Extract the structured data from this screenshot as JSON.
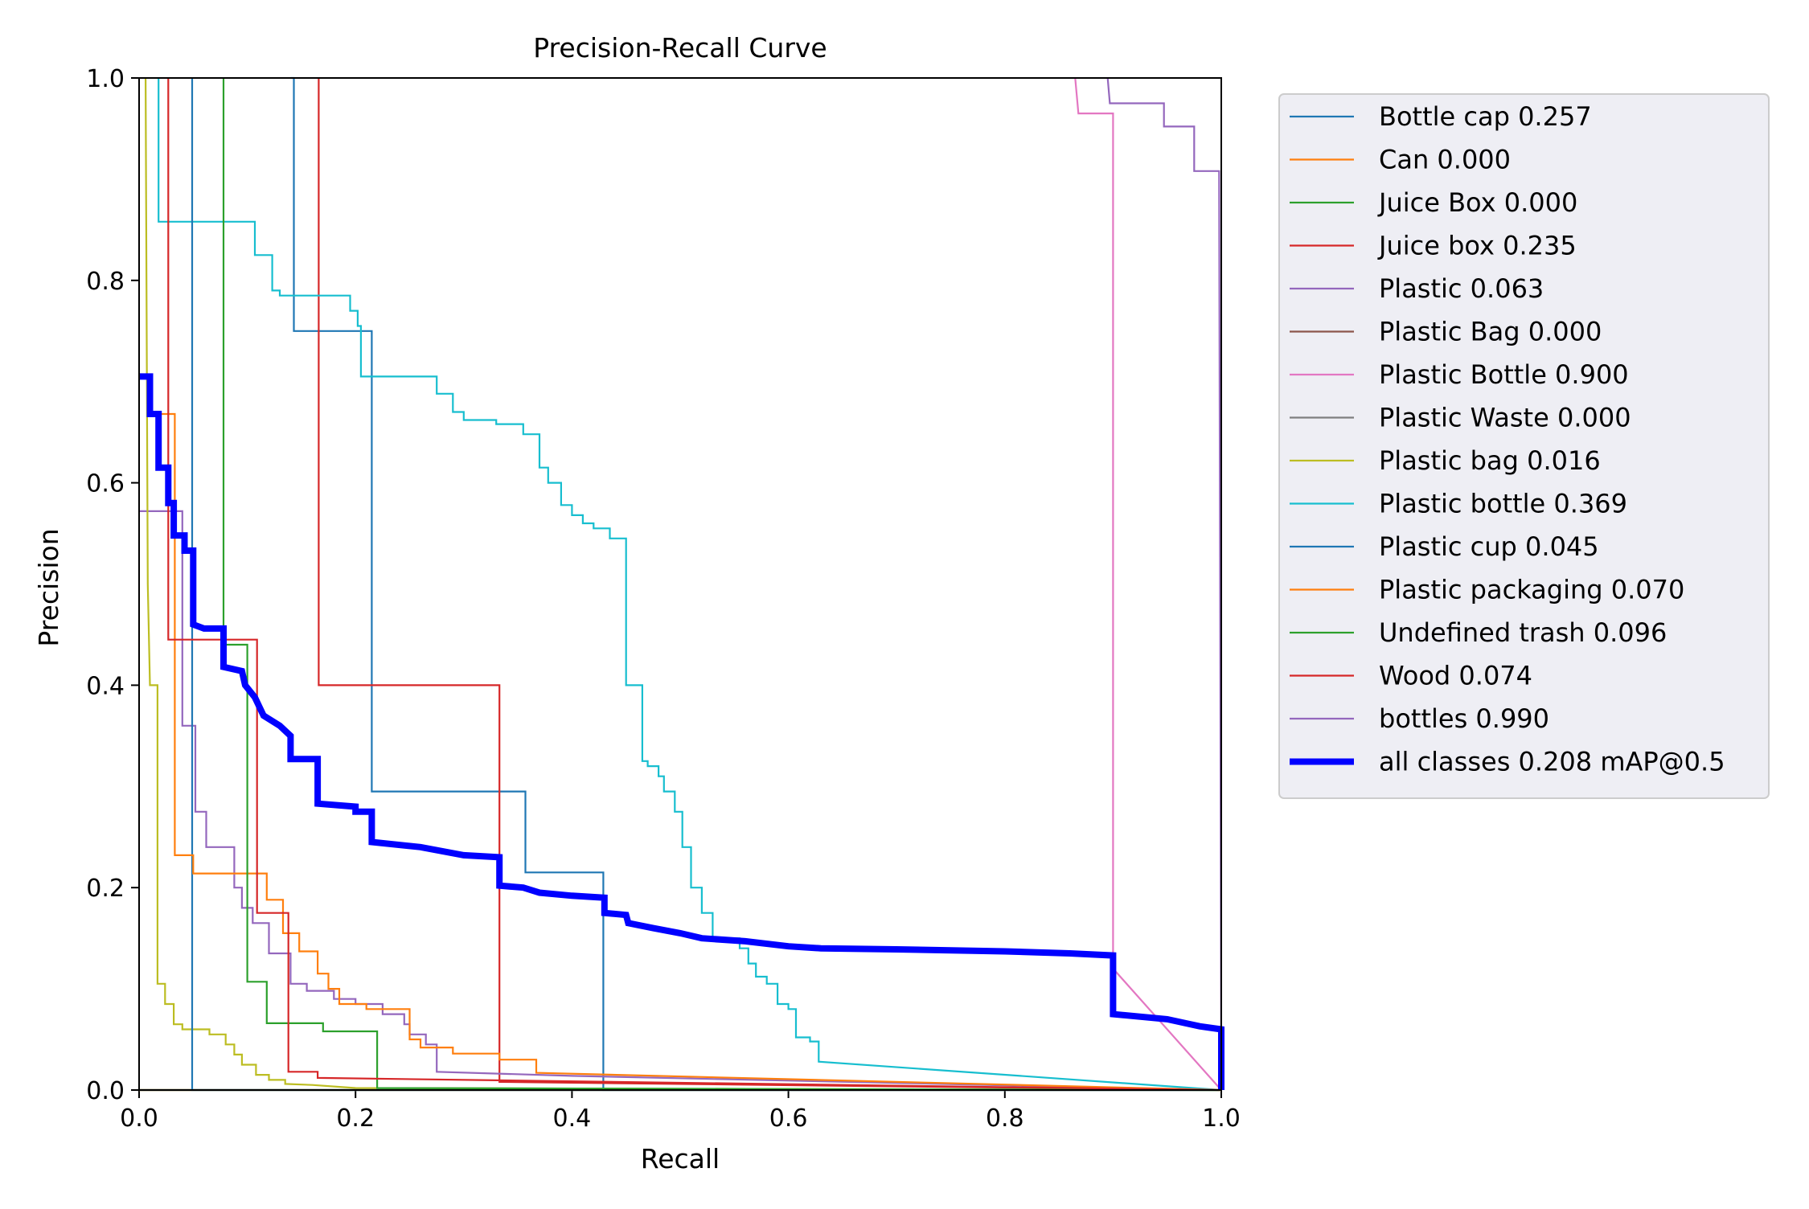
{
  "chart_data": {
    "type": "line",
    "title": "Precision-Recall Curve",
    "xlabel": "Recall",
    "ylabel": "Precision",
    "xlim": [
      0,
      1
    ],
    "ylim": [
      0,
      1
    ],
    "xticks": [
      "0.0",
      "0.2",
      "0.4",
      "0.6",
      "0.8",
      "1.0"
    ],
    "yticks": [
      "0.0",
      "0.2",
      "0.4",
      "0.6",
      "0.8",
      "1.0"
    ],
    "grid": false,
    "legend_position": "outside-top-right",
    "series": [
      {
        "name": "Bottle cap 0.257",
        "color": "#1f77b4",
        "width": "thin",
        "points": [
          [
            0.14,
            1.0
          ],
          [
            0.143,
            1.0
          ],
          [
            0.143,
            0.75
          ],
          [
            0.215,
            0.75
          ],
          [
            0.215,
            0.295
          ],
          [
            0.357,
            0.295
          ],
          [
            0.357,
            0.215
          ],
          [
            0.429,
            0.215
          ],
          [
            0.429,
            0.0
          ],
          [
            1.0,
            0.0
          ]
        ]
      },
      {
        "name": "Can 0.000",
        "color": "#ff7f0e",
        "width": "thin",
        "points": [
          [
            0.0,
            0.0
          ],
          [
            1.0,
            0.0
          ]
        ]
      },
      {
        "name": "Juice Box 0.000",
        "color": "#2ca02c",
        "width": "thin",
        "points": [
          [
            0.0,
            0.0
          ],
          [
            1.0,
            0.0
          ]
        ]
      },
      {
        "name": "Juice box 0.235",
        "color": "#d62728",
        "width": "thin",
        "points": [
          [
            0.166,
            1.0
          ],
          [
            0.166,
            0.4
          ],
          [
            0.333,
            0.4
          ],
          [
            0.333,
            0.008
          ],
          [
            1.0,
            0.0
          ]
        ]
      },
      {
        "name": "Plastic 0.063",
        "color": "#9467bd",
        "width": "thin",
        "points": [
          [
            0.0,
            0.572
          ],
          [
            0.04,
            0.572
          ],
          [
            0.04,
            0.36
          ],
          [
            0.052,
            0.36
          ],
          [
            0.052,
            0.275
          ],
          [
            0.062,
            0.275
          ],
          [
            0.062,
            0.24
          ],
          [
            0.088,
            0.24
          ],
          [
            0.088,
            0.2
          ],
          [
            0.095,
            0.2
          ],
          [
            0.095,
            0.18
          ],
          [
            0.105,
            0.18
          ],
          [
            0.105,
            0.165
          ],
          [
            0.12,
            0.165
          ],
          [
            0.12,
            0.135
          ],
          [
            0.14,
            0.135
          ],
          [
            0.14,
            0.105
          ],
          [
            0.155,
            0.105
          ],
          [
            0.155,
            0.098
          ],
          [
            0.18,
            0.098
          ],
          [
            0.18,
            0.09
          ],
          [
            0.2,
            0.09
          ],
          [
            0.2,
            0.085
          ],
          [
            0.225,
            0.085
          ],
          [
            0.225,
            0.075
          ],
          [
            0.245,
            0.075
          ],
          [
            0.245,
            0.065
          ],
          [
            0.25,
            0.065
          ],
          [
            0.25,
            0.055
          ],
          [
            0.265,
            0.055
          ],
          [
            0.265,
            0.045
          ],
          [
            0.275,
            0.045
          ],
          [
            0.275,
            0.018
          ],
          [
            0.4,
            0.014
          ],
          [
            1.0,
            0.0
          ]
        ]
      },
      {
        "name": "Plastic Bag 0.000",
        "color": "#8c564b",
        "width": "thin",
        "points": [
          [
            0.0,
            0.0
          ],
          [
            1.0,
            0.0
          ]
        ]
      },
      {
        "name": "Plastic Bottle 0.900",
        "color": "#e377c2",
        "width": "thin",
        "points": [
          [
            0.865,
            1.0
          ],
          [
            0.868,
            0.965
          ],
          [
            0.9,
            0.965
          ],
          [
            0.9,
            0.12
          ],
          [
            1.0,
            0.0
          ]
        ]
      },
      {
        "name": "Plastic Waste 0.000",
        "color": "#7f7f7f",
        "width": "thin",
        "points": [
          [
            0.0,
            0.0
          ],
          [
            1.0,
            0.0
          ]
        ]
      },
      {
        "name": "Plastic bag 0.016",
        "color": "#bcbd22",
        "width": "thin",
        "points": [
          [
            0.006,
            1.0
          ],
          [
            0.008,
            0.5
          ],
          [
            0.01,
            0.4
          ],
          [
            0.017,
            0.4
          ],
          [
            0.017,
            0.105
          ],
          [
            0.024,
            0.105
          ],
          [
            0.024,
            0.085
          ],
          [
            0.032,
            0.085
          ],
          [
            0.032,
            0.065
          ],
          [
            0.04,
            0.065
          ],
          [
            0.04,
            0.06
          ],
          [
            0.065,
            0.06
          ],
          [
            0.065,
            0.055
          ],
          [
            0.08,
            0.055
          ],
          [
            0.08,
            0.045
          ],
          [
            0.088,
            0.045
          ],
          [
            0.088,
            0.035
          ],
          [
            0.095,
            0.035
          ],
          [
            0.095,
            0.025
          ],
          [
            0.108,
            0.025
          ],
          [
            0.108,
            0.015
          ],
          [
            0.12,
            0.015
          ],
          [
            0.12,
            0.01
          ],
          [
            0.135,
            0.01
          ],
          [
            0.135,
            0.006
          ],
          [
            0.16,
            0.005
          ],
          [
            0.2,
            0.002
          ],
          [
            1.0,
            0.0
          ]
        ]
      },
      {
        "name": "Plastic bottle 0.369",
        "color": "#17becf",
        "width": "thin",
        "points": [
          [
            0.018,
            1.0
          ],
          [
            0.018,
            0.858
          ],
          [
            0.107,
            0.858
          ],
          [
            0.107,
            0.825
          ],
          [
            0.123,
            0.825
          ],
          [
            0.123,
            0.79
          ],
          [
            0.13,
            0.79
          ],
          [
            0.13,
            0.785
          ],
          [
            0.195,
            0.785
          ],
          [
            0.195,
            0.77
          ],
          [
            0.202,
            0.77
          ],
          [
            0.202,
            0.755
          ],
          [
            0.205,
            0.755
          ],
          [
            0.205,
            0.705
          ],
          [
            0.275,
            0.705
          ],
          [
            0.275,
            0.688
          ],
          [
            0.29,
            0.688
          ],
          [
            0.29,
            0.67
          ],
          [
            0.3,
            0.67
          ],
          [
            0.3,
            0.662
          ],
          [
            0.33,
            0.662
          ],
          [
            0.33,
            0.658
          ],
          [
            0.355,
            0.658
          ],
          [
            0.355,
            0.648
          ],
          [
            0.37,
            0.648
          ],
          [
            0.37,
            0.615
          ],
          [
            0.378,
            0.615
          ],
          [
            0.378,
            0.6
          ],
          [
            0.39,
            0.6
          ],
          [
            0.39,
            0.578
          ],
          [
            0.4,
            0.578
          ],
          [
            0.4,
            0.568
          ],
          [
            0.41,
            0.568
          ],
          [
            0.41,
            0.56
          ],
          [
            0.42,
            0.56
          ],
          [
            0.42,
            0.555
          ],
          [
            0.435,
            0.555
          ],
          [
            0.435,
            0.545
          ],
          [
            0.45,
            0.545
          ],
          [
            0.45,
            0.4
          ],
          [
            0.465,
            0.4
          ],
          [
            0.465,
            0.325
          ],
          [
            0.47,
            0.325
          ],
          [
            0.47,
            0.32
          ],
          [
            0.48,
            0.32
          ],
          [
            0.48,
            0.31
          ],
          [
            0.485,
            0.31
          ],
          [
            0.485,
            0.295
          ],
          [
            0.495,
            0.295
          ],
          [
            0.495,
            0.275
          ],
          [
            0.502,
            0.275
          ],
          [
            0.502,
            0.24
          ],
          [
            0.51,
            0.24
          ],
          [
            0.51,
            0.2
          ],
          [
            0.52,
            0.2
          ],
          [
            0.52,
            0.175
          ],
          [
            0.53,
            0.175
          ],
          [
            0.53,
            0.15
          ],
          [
            0.555,
            0.15
          ],
          [
            0.555,
            0.14
          ],
          [
            0.563,
            0.14
          ],
          [
            0.563,
            0.125
          ],
          [
            0.57,
            0.125
          ],
          [
            0.57,
            0.112
          ],
          [
            0.58,
            0.112
          ],
          [
            0.58,
            0.105
          ],
          [
            0.59,
            0.105
          ],
          [
            0.59,
            0.085
          ],
          [
            0.6,
            0.085
          ],
          [
            0.6,
            0.08
          ],
          [
            0.607,
            0.08
          ],
          [
            0.607,
            0.052
          ],
          [
            0.62,
            0.052
          ],
          [
            0.62,
            0.048
          ],
          [
            0.628,
            0.048
          ],
          [
            0.628,
            0.028
          ],
          [
            1.0,
            0.0
          ]
        ]
      },
      {
        "name": "Plastic cup 0.045",
        "color": "#1f77b4",
        "width": "thin",
        "points": [
          [
            0.049,
            1.0
          ],
          [
            0.049,
            0.0
          ],
          [
            1.0,
            0.0
          ]
        ]
      },
      {
        "name": "Plastic packaging 0.070",
        "color": "#ff7f0e",
        "width": "thin",
        "points": [
          [
            0.02,
            0.668
          ],
          [
            0.033,
            0.668
          ],
          [
            0.033,
            0.232
          ],
          [
            0.05,
            0.232
          ],
          [
            0.05,
            0.214
          ],
          [
            0.118,
            0.214
          ],
          [
            0.118,
            0.188
          ],
          [
            0.133,
            0.188
          ],
          [
            0.133,
            0.155
          ],
          [
            0.148,
            0.155
          ],
          [
            0.148,
            0.137
          ],
          [
            0.165,
            0.137
          ],
          [
            0.165,
            0.115
          ],
          [
            0.175,
            0.115
          ],
          [
            0.175,
            0.1
          ],
          [
            0.185,
            0.1
          ],
          [
            0.185,
            0.085
          ],
          [
            0.21,
            0.085
          ],
          [
            0.21,
            0.08
          ],
          [
            0.25,
            0.08
          ],
          [
            0.25,
            0.05
          ],
          [
            0.26,
            0.05
          ],
          [
            0.26,
            0.042
          ],
          [
            0.29,
            0.042
          ],
          [
            0.29,
            0.036
          ],
          [
            0.333,
            0.036
          ],
          [
            0.333,
            0.03
          ],
          [
            0.367,
            0.03
          ],
          [
            0.367,
            0.017
          ],
          [
            1.0,
            0.0
          ]
        ]
      },
      {
        "name": "Undefined trash 0.096",
        "color": "#2ca02c",
        "width": "thin",
        "points": [
          [
            0.078,
            1.0
          ],
          [
            0.078,
            0.44
          ],
          [
            0.1,
            0.44
          ],
          [
            0.1,
            0.107
          ],
          [
            0.118,
            0.107
          ],
          [
            0.118,
            0.066
          ],
          [
            0.17,
            0.066
          ],
          [
            0.17,
            0.058
          ],
          [
            0.22,
            0.058
          ],
          [
            0.22,
            0.002
          ],
          [
            1.0,
            0.0
          ]
        ]
      },
      {
        "name": "Wood 0.074",
        "color": "#d62728",
        "width": "thin",
        "points": [
          [
            0.027,
            1.0
          ],
          [
            0.027,
            0.445
          ],
          [
            0.109,
            0.445
          ],
          [
            0.109,
            0.175
          ],
          [
            0.138,
            0.175
          ],
          [
            0.138,
            0.018
          ],
          [
            0.165,
            0.018
          ],
          [
            0.165,
            0.012
          ],
          [
            1.0,
            0.0
          ]
        ]
      },
      {
        "name": "bottles 0.990",
        "color": "#9467bd",
        "width": "thin",
        "points": [
          [
            0.895,
            1.0
          ],
          [
            0.897,
            0.975
          ],
          [
            0.947,
            0.975
          ],
          [
            0.947,
            0.952
          ],
          [
            0.975,
            0.952
          ],
          [
            0.975,
            0.908
          ],
          [
            0.998,
            0.908
          ],
          [
            1.0,
            0.0
          ]
        ]
      },
      {
        "name": "all classes 0.208 mAP@0.5",
        "color": "#0000ff",
        "width": "thick",
        "points": [
          [
            0.0,
            0.705
          ],
          [
            0.01,
            0.705
          ],
          [
            0.01,
            0.668
          ],
          [
            0.018,
            0.668
          ],
          [
            0.018,
            0.615
          ],
          [
            0.027,
            0.615
          ],
          [
            0.027,
            0.58
          ],
          [
            0.032,
            0.58
          ],
          [
            0.032,
            0.548
          ],
          [
            0.042,
            0.548
          ],
          [
            0.042,
            0.533
          ],
          [
            0.05,
            0.533
          ],
          [
            0.05,
            0.46
          ],
          [
            0.06,
            0.456
          ],
          [
            0.078,
            0.456
          ],
          [
            0.078,
            0.418
          ],
          [
            0.095,
            0.414
          ],
          [
            0.098,
            0.4
          ],
          [
            0.107,
            0.388
          ],
          [
            0.115,
            0.37
          ],
          [
            0.13,
            0.36
          ],
          [
            0.14,
            0.35
          ],
          [
            0.14,
            0.327
          ],
          [
            0.165,
            0.327
          ],
          [
            0.165,
            0.283
          ],
          [
            0.2,
            0.28
          ],
          [
            0.2,
            0.275
          ],
          [
            0.215,
            0.275
          ],
          [
            0.215,
            0.245
          ],
          [
            0.26,
            0.24
          ],
          [
            0.3,
            0.232
          ],
          [
            0.333,
            0.23
          ],
          [
            0.333,
            0.202
          ],
          [
            0.355,
            0.2
          ],
          [
            0.37,
            0.195
          ],
          [
            0.4,
            0.192
          ],
          [
            0.43,
            0.19
          ],
          [
            0.43,
            0.175
          ],
          [
            0.45,
            0.173
          ],
          [
            0.452,
            0.165
          ],
          [
            0.475,
            0.16
          ],
          [
            0.5,
            0.155
          ],
          [
            0.52,
            0.15
          ],
          [
            0.56,
            0.147
          ],
          [
            0.6,
            0.142
          ],
          [
            0.63,
            0.14
          ],
          [
            0.7,
            0.139
          ],
          [
            0.8,
            0.137
          ],
          [
            0.86,
            0.135
          ],
          [
            0.9,
            0.133
          ],
          [
            0.9,
            0.075
          ],
          [
            0.95,
            0.07
          ],
          [
            0.98,
            0.063
          ],
          [
            1.0,
            0.06
          ],
          [
            1.0,
            0.0
          ]
        ]
      }
    ]
  }
}
